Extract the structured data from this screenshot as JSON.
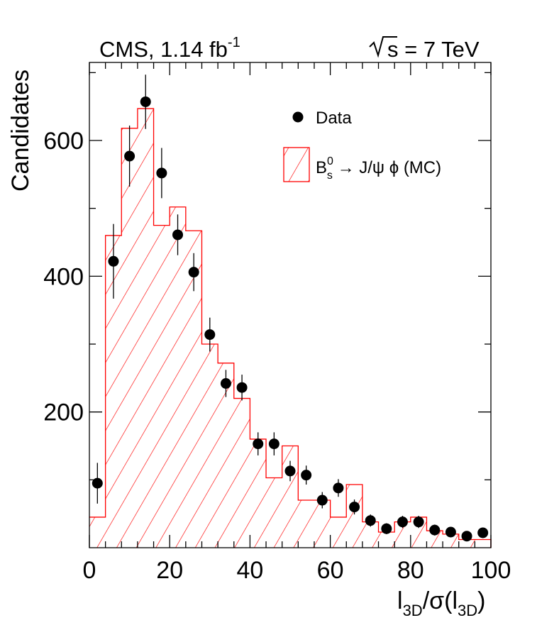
{
  "chart_data": {
    "type": "histogram",
    "header_left": {
      "main": "CMS, 1.14 fb",
      "sup": "-1"
    },
    "header_right": {
      "main": "s = 7 TeV"
    },
    "xlabel": {
      "pre": "l",
      "sub1": "3D",
      "mid": "/σ(l",
      "sub2": "3D",
      "post": ")"
    },
    "ylabel": "Candidates",
    "xlim": [
      0,
      100
    ],
    "ylim": [
      0,
      715
    ],
    "x_ticks": [
      0,
      20,
      40,
      60,
      80,
      100
    ],
    "x_tick_labels": [
      "0",
      "20",
      "40",
      "60",
      "80",
      "100"
    ],
    "y_ticks": [
      200,
      400,
      600
    ],
    "y_tick_labels": [
      "200",
      "400",
      "600"
    ],
    "bin_edges": [
      0,
      4,
      8,
      12,
      16,
      20,
      24,
      28,
      32,
      36,
      40,
      44,
      48,
      52,
      56,
      60,
      64,
      68,
      72,
      76,
      80,
      84,
      88,
      92,
      96,
      100
    ],
    "series": [
      {
        "name": "Data",
        "kind": "points_with_errors",
        "color": "#000000",
        "x": [
          2,
          6,
          10,
          14,
          18,
          22,
          26,
          30,
          34,
          38,
          42,
          46,
          50,
          54,
          58,
          62,
          66,
          70,
          74,
          78,
          82,
          86,
          90,
          94,
          98
        ],
        "values": [
          95,
          422,
          577,
          657,
          552,
          461,
          406,
          314,
          242,
          236,
          153,
          153,
          113,
          107,
          70,
          88,
          60,
          40,
          28,
          38,
          38,
          26,
          23,
          17,
          22
        ],
        "errors": [
          30,
          55,
          45,
          40,
          37,
          30,
          28,
          25,
          20,
          19,
          17,
          17,
          15,
          14,
          12,
          13,
          11,
          9,
          8,
          9,
          9,
          8,
          7,
          6,
          7
        ]
      },
      {
        "name": "MC",
        "kind": "hatched_histogram",
        "color": "#ff0000",
        "values": [
          45,
          460,
          618,
          647,
          475,
          502,
          467,
          300,
          272,
          220,
          160,
          103,
          150,
          70,
          70,
          45,
          93,
          38,
          23,
          38,
          45,
          25,
          20,
          12,
          12
        ]
      }
    ],
    "legend": {
      "placement": "top-right",
      "entries": [
        {
          "label": "Data"
        },
        {
          "label_parts": {
            "B": "B",
            "sup": "0",
            "sub": "s",
            "rest": " → J/ψ ϕ (MC)"
          }
        }
      ]
    }
  }
}
